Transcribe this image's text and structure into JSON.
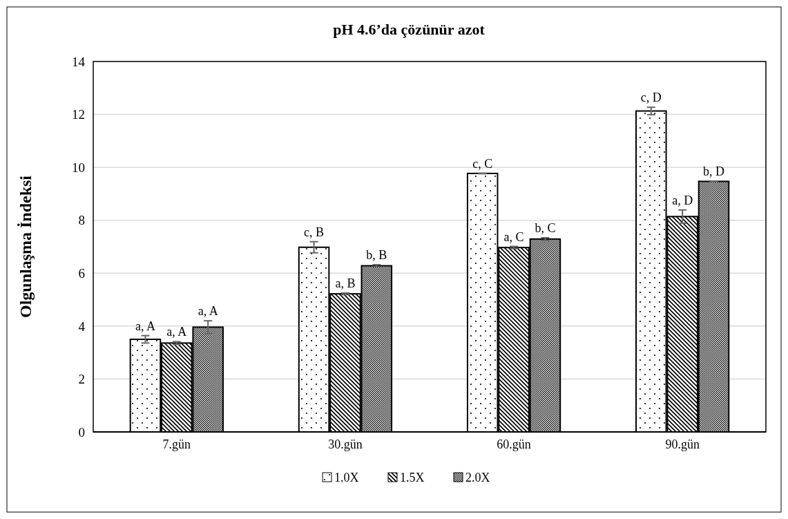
{
  "chart_data": {
    "type": "bar",
    "title": "pH 4.6’da çözünür azot",
    "ylabel": "Olgunlaşma İndeksi",
    "categories": [
      "7.gün",
      "30.gün",
      "60.gün",
      "90.gün"
    ],
    "series": [
      {
        "name": "1.0X",
        "color": "#000000",
        "values": [
          3.5,
          6.98,
          9.77,
          12.13
        ],
        "errors": [
          0.14,
          0.21,
          0.01,
          0.14
        ],
        "value_labels": [
          "a, A",
          "c, B",
          "c, C",
          "c, D"
        ]
      },
      {
        "name": "1.5X",
        "color": "#000000",
        "values": [
          3.36,
          5.22,
          6.97,
          8.14
        ],
        "errors": [
          0.05,
          0.03,
          0.04,
          0.25
        ],
        "value_labels": [
          "a, A",
          "a, B",
          "a, C",
          "a, D"
        ]
      },
      {
        "name": "2.0X",
        "color": "#000000",
        "values": [
          3.96,
          6.28,
          7.29,
          9.47
        ],
        "errors": [
          0.24,
          0.04,
          0.05,
          0.01
        ],
        "value_labels": [
          "a, A",
          "b, B",
          "b, C",
          "b, D"
        ]
      }
    ],
    "ylim": [
      0,
      14
    ],
    "yticks": [
      0,
      2,
      4,
      6,
      8,
      10,
      12,
      14
    ],
    "grid": "y",
    "legend": "bottom"
  }
}
